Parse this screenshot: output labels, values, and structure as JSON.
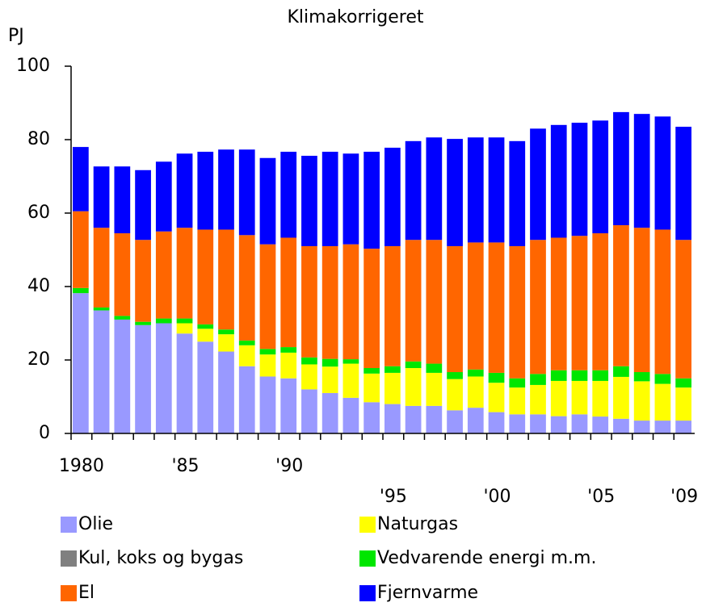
{
  "chart_data": {
    "type": "stacked_bar",
    "title": "Klimakorrigeret",
    "y_label": "PJ",
    "categories": [
      "1980",
      null,
      null,
      null,
      null,
      "'85",
      null,
      null,
      null,
      null,
      "'90",
      null,
      null,
      null,
      null,
      "'95",
      null,
      null,
      null,
      null,
      "'00",
      null,
      null,
      null,
      null,
      "'05",
      null,
      null,
      null,
      "'09"
    ],
    "series": [
      {
        "name": "Olie",
        "color": "#9999ff",
        "values": [
          38.2,
          33.5,
          31,
          29.5,
          30,
          27.2,
          25,
          22.3,
          18.3,
          15.5,
          15,
          12,
          11,
          9.7,
          8.5,
          8,
          7.5,
          7.5,
          6.3,
          7,
          5.8,
          5.2,
          5.2,
          4.7,
          5.2,
          4.6,
          4,
          3.5,
          3.5,
          3.5
        ]
      },
      {
        "name": "Kul, koks og bygas",
        "color": "#808080",
        "values": [
          0,
          0,
          0,
          0,
          0,
          0,
          0,
          0,
          0,
          0,
          0,
          0,
          0,
          0,
          0,
          0,
          0,
          0,
          0,
          0,
          0,
          0,
          0,
          0,
          0,
          0,
          0,
          0,
          0,
          0
        ]
      },
      {
        "name": "Naturgas",
        "color": "#ffff00",
        "values": [
          0,
          0,
          0,
          0,
          0,
          2.8,
          3.5,
          4.7,
          5.7,
          6,
          7,
          6.8,
          7.2,
          9.3,
          7.8,
          8.5,
          10.3,
          9,
          8.5,
          8.5,
          8,
          7.3,
          8,
          9.6,
          9.1,
          9.7,
          11.4,
          10.7,
          10,
          9
        ]
      },
      {
        "name": "Vedvarende energi m.m.",
        "color": "#00e600",
        "values": [
          1.4,
          0.8,
          1,
          0.9,
          1.3,
          1.3,
          1.2,
          1.3,
          1.3,
          1.5,
          1.5,
          1.9,
          2.1,
          1.2,
          1.5,
          1.8,
          1.8,
          2.5,
          1.9,
          1.9,
          2.7,
          2.5,
          3,
          2.9,
          2.9,
          2.9,
          2.9,
          2.5,
          2.7,
          2.5
        ]
      },
      {
        "name": "El",
        "color": "#ff6600",
        "values": [
          20.9,
          21.7,
          22.5,
          22.3,
          23.7,
          24.7,
          25.8,
          27.2,
          28.7,
          28.5,
          29.8,
          30.3,
          30.7,
          31.3,
          32.5,
          32.7,
          33.1,
          33.7,
          34.3,
          34.6,
          35.5,
          36,
          36.5,
          36.1,
          36.6,
          37.3,
          38.4,
          39.3,
          39.3,
          37.7
        ]
      },
      {
        "name": "Fjernvarme",
        "color": "#0000ff",
        "values": [
          17.5,
          16.7,
          18.2,
          19,
          19,
          20.2,
          21.2,
          21.8,
          23.3,
          23.5,
          23.4,
          24.6,
          25.7,
          24.7,
          26.4,
          26.8,
          26.9,
          27.9,
          29.2,
          28.6,
          28.6,
          28.6,
          30.3,
          30.7,
          30.8,
          30.7,
          30.8,
          31,
          30.8,
          30.8
        ]
      }
    ],
    "ylim": [
      0,
      100
    ],
    "yticks": [
      0,
      20,
      40,
      60,
      80,
      100
    ],
    "grid": false
  }
}
